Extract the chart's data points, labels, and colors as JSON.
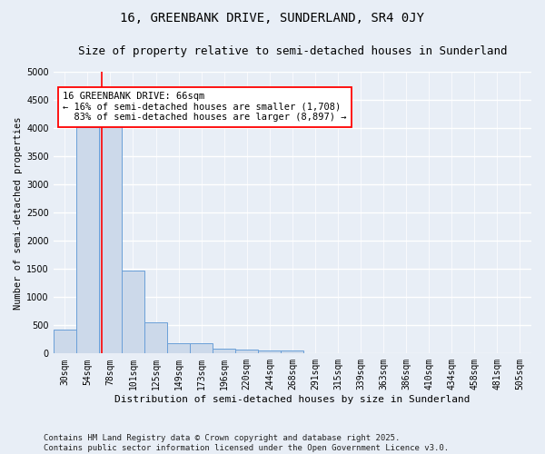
{
  "title": "16, GREENBANK DRIVE, SUNDERLAND, SR4 0JY",
  "subtitle": "Size of property relative to semi-detached houses in Sunderland",
  "xlabel": "Distribution of semi-detached houses by size in Sunderland",
  "ylabel": "Number of semi-detached properties",
  "bar_color": "#ccd9ea",
  "bar_edge_color": "#6a9fd8",
  "bg_color": "#e8eef6",
  "grid_color": "#ffffff",
  "categories": [
    "30sqm",
    "54sqm",
    "78sqm",
    "101sqm",
    "125sqm",
    "149sqm",
    "173sqm",
    "196sqm",
    "220sqm",
    "244sqm",
    "268sqm",
    "291sqm",
    "315sqm",
    "339sqm",
    "363sqm",
    "386sqm",
    "410sqm",
    "434sqm",
    "458sqm",
    "481sqm",
    "505sqm"
  ],
  "values": [
    420,
    4020,
    4050,
    1480,
    560,
    175,
    175,
    90,
    65,
    60,
    55,
    0,
    0,
    0,
    0,
    0,
    0,
    0,
    0,
    0,
    0
  ],
  "ylim": [
    0,
    5000
  ],
  "yticks": [
    0,
    500,
    1000,
    1500,
    2000,
    2500,
    3000,
    3500,
    4000,
    4500,
    5000
  ],
  "property_label": "16 GREENBANK DRIVE: 66sqm",
  "pct_smaller": 16,
  "count_smaller": 1708,
  "pct_larger": 83,
  "count_larger": 8897,
  "vline_x_index": 1.62,
  "footnote": "Contains HM Land Registry data © Crown copyright and database right 2025.\nContains public sector information licensed under the Open Government Licence v3.0.",
  "title_fontsize": 10,
  "subtitle_fontsize": 9,
  "annotation_fontsize": 7.5,
  "tick_fontsize": 7,
  "ylabel_fontsize": 7.5,
  "xlabel_fontsize": 8,
  "footnote_fontsize": 6.5
}
